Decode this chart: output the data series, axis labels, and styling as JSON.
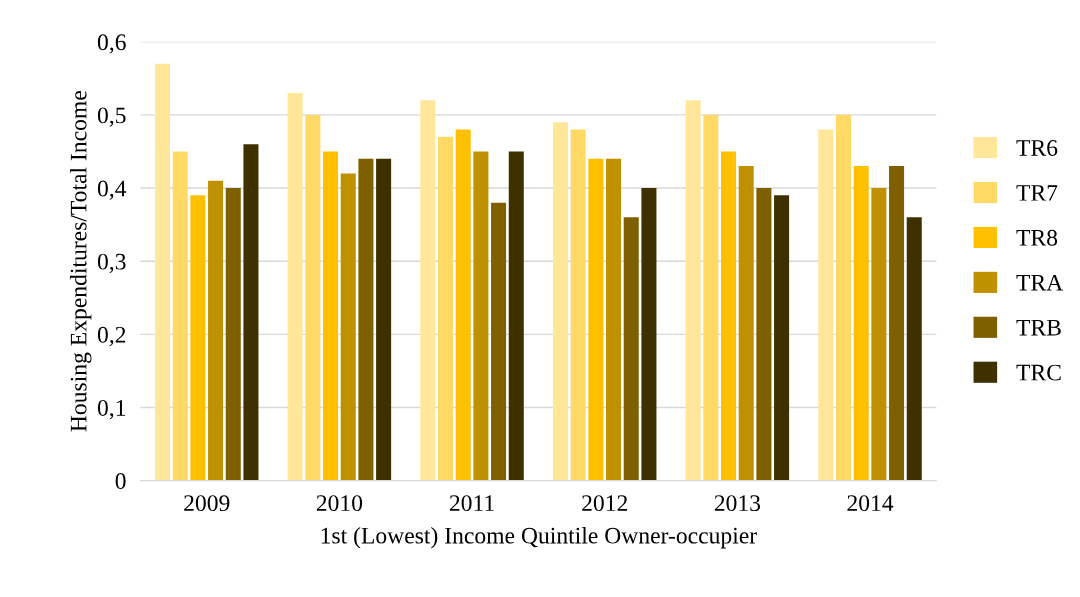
{
  "chart_data": {
    "type": "bar",
    "xlabel": "1st (Lowest) Income Quintile Owner-occupier",
    "ylabel": "Housing Expenditures/Total Income",
    "categories": [
      "2009",
      "2010",
      "2011",
      "2012",
      "2013",
      "2014"
    ],
    "series": [
      {
        "name": "TR6",
        "color": "#ffe699",
        "values": [
          0.57,
          0.53,
          0.52,
          0.49,
          0.52,
          0.48
        ]
      },
      {
        "name": "TR7",
        "color": "#ffd966",
        "values": [
          0.45,
          0.5,
          0.47,
          0.48,
          0.5,
          0.5
        ]
      },
      {
        "name": "TR8",
        "color": "#ffc000",
        "values": [
          0.39,
          0.45,
          0.48,
          0.44,
          0.45,
          0.43
        ]
      },
      {
        "name": "TRA",
        "color": "#bf9000",
        "values": [
          0.41,
          0.42,
          0.45,
          0.44,
          0.43,
          0.4
        ]
      },
      {
        "name": "TRB",
        "color": "#7f6000",
        "values": [
          0.4,
          0.44,
          0.38,
          0.36,
          0.4,
          0.43
        ]
      },
      {
        "name": "TRC",
        "color": "#3f3000",
        "values": [
          0.46,
          0.44,
          0.45,
          0.4,
          0.39,
          0.36
        ]
      }
    ],
    "ylim": [
      0,
      0.6
    ],
    "yticks": [
      0,
      {
        "value": 0.1,
        "label": "0,1"
      },
      {
        "value": 0.2,
        "label": "0,2"
      },
      {
        "value": 0.3,
        "label": "0,3"
      },
      {
        "value": 0.4,
        "label": "0,4"
      },
      {
        "value": 0.5,
        "label": "0,5"
      },
      {
        "value": 0.6,
        "label": "0,6"
      }
    ],
    "grid": "y",
    "legend": "right"
  }
}
